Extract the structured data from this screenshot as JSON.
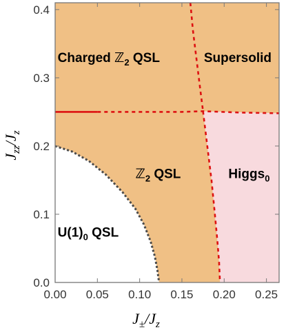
{
  "chart_data": {
    "type": "phase_diagram",
    "xlabel": {
      "main": "J",
      "sub1": "±",
      "sep": "/J",
      "sub2": "z"
    },
    "ylabel": {
      "main": "J",
      "sub1": "zz",
      "sep": "/J",
      "sub2": "z"
    },
    "xlim": [
      0.0,
      0.265
    ],
    "ylim": [
      0.0,
      0.41
    ],
    "xticks": [
      0.0,
      0.05,
      0.1,
      0.15,
      0.2,
      0.25
    ],
    "xtick_labels": [
      "0.00",
      "0.05",
      "0.10",
      "0.15",
      "0.20",
      "0.25"
    ],
    "yticks": [
      0.0,
      0.1,
      0.2,
      0.3,
      0.4
    ],
    "ytick_labels": [
      "0.0",
      "0.1",
      "0.2",
      "0.3",
      "0.4"
    ],
    "grid": false,
    "colors": {
      "orange_fill": "#f0c085",
      "pink_fill": "#f8dade",
      "red_line": "#dd1111",
      "gray_dotted": "#4a4a4a",
      "frame": "#777777"
    },
    "boundaries": {
      "u1_to_z2": {
        "style": "gray-dotted",
        "x": [
          0.0,
          0.02,
          0.04,
          0.06,
          0.08,
          0.095,
          0.105,
          0.113,
          0.118,
          0.121,
          0.123
        ],
        "y": [
          0.2,
          0.192,
          0.178,
          0.158,
          0.132,
          0.108,
          0.085,
          0.06,
          0.038,
          0.018,
          0.0
        ]
      },
      "horizontal_solid": {
        "style": "red-solid",
        "x": [
          0.0,
          0.05
        ],
        "y": [
          0.25,
          0.25
        ]
      },
      "horizontal_dashed": {
        "style": "red-dashed",
        "x": [
          0.05,
          0.1,
          0.15,
          0.175,
          0.22,
          0.265
        ],
        "y": [
          0.25,
          0.25,
          0.25,
          0.251,
          0.249,
          0.248
        ]
      },
      "upper_vertical": {
        "style": "red-dashed",
        "x": [
          0.16,
          0.163,
          0.167,
          0.171,
          0.175
        ],
        "y": [
          0.41,
          0.37,
          0.33,
          0.29,
          0.251
        ]
      },
      "lower_vertical": {
        "style": "red-dashed",
        "x": [
          0.175,
          0.18,
          0.185,
          0.189,
          0.192,
          0.194,
          0.195
        ],
        "y": [
          0.251,
          0.2,
          0.15,
          0.1,
          0.06,
          0.03,
          0.0
        ]
      }
    },
    "regions": [
      {
        "id": "charged",
        "lead": "Charged ",
        "sym": "ℤ",
        "sub": "2",
        "tail": " QSL",
        "x": 0.003,
        "y": 0.323
      },
      {
        "id": "supersolid",
        "lead": "Supersolid",
        "sym": "",
        "sub": "",
        "tail": "",
        "x": 0.176,
        "y": 0.323
      },
      {
        "id": "z2",
        "lead": "",
        "sym": "ℤ",
        "sub": "2",
        "tail": " QSL",
        "x": 0.095,
        "y": 0.153
      },
      {
        "id": "higgs",
        "lead": "Higgs",
        "sym": "",
        "sub": "0",
        "tail": "",
        "x": 0.205,
        "y": 0.153
      },
      {
        "id": "u1",
        "lead": "U(1)",
        "sym": "",
        "sub": "0",
        "tail": " QSL",
        "x": 0.003,
        "y": 0.067
      }
    ]
  }
}
